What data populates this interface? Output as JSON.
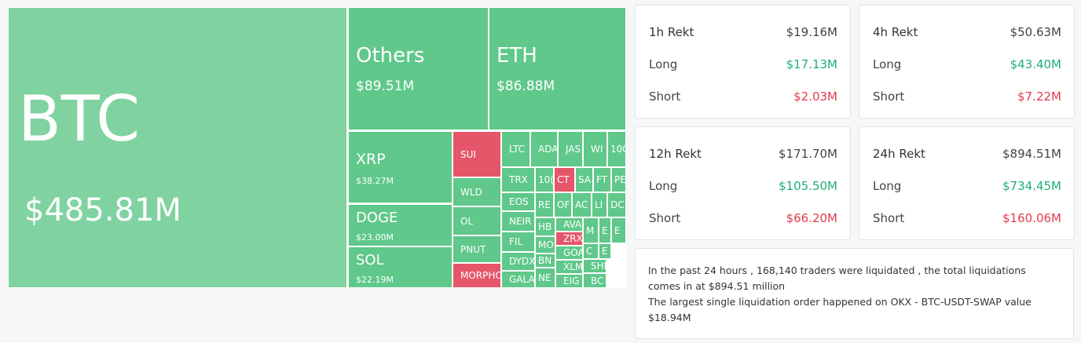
{
  "treemap": {
    "tiles": [
      {
        "label": "BTC",
        "value": "$485.81M"
      },
      {
        "label": "Others",
        "value": "$89.51M"
      },
      {
        "label": "ETH",
        "value": "$86.88M"
      },
      {
        "label": "XRP",
        "value": "$38.27M"
      },
      {
        "label": "DOGE",
        "value": "$23.00M"
      },
      {
        "label": "SOL",
        "value": "$22.19M"
      },
      {
        "label": "SUI"
      },
      {
        "label": "WLD"
      },
      {
        "label": "OL"
      },
      {
        "label": "PNUT"
      },
      {
        "label": "MORPHO"
      },
      {
        "label": "LTC"
      },
      {
        "label": "ADA"
      },
      {
        "label": "JAS"
      },
      {
        "label": "WI"
      },
      {
        "label": "100"
      },
      {
        "label": "TRX"
      },
      {
        "label": "10("
      },
      {
        "label": "CT"
      },
      {
        "label": "SA"
      },
      {
        "label": "FT"
      },
      {
        "label": "PE"
      },
      {
        "label": "EOS"
      },
      {
        "label": "RE"
      },
      {
        "label": "OF"
      },
      {
        "label": "AC"
      },
      {
        "label": "LI"
      },
      {
        "label": "DC"
      },
      {
        "label": "NEIR"
      },
      {
        "label": "HB"
      },
      {
        "label": "AVA"
      },
      {
        "label": "M"
      },
      {
        "label": "E"
      },
      {
        "label": "E"
      },
      {
        "label": "FIL"
      },
      {
        "label": "MO"
      },
      {
        "label": "ZRX"
      },
      {
        "label": "GOA"
      },
      {
        "label": "C"
      },
      {
        "label": "E"
      },
      {
        "label": "DYDX"
      },
      {
        "label": "BN"
      },
      {
        "label": "XLM"
      },
      {
        "label": "SHI"
      },
      {
        "label": "GALA"
      },
      {
        "label": "NE"
      },
      {
        "label": "EIG"
      },
      {
        "label": "BC"
      }
    ]
  },
  "cards": [
    {
      "title": "1h Rekt",
      "total": "$19.16M",
      "long_label": "Long",
      "long": "$17.13M",
      "short_label": "Short",
      "short": "$2.03M"
    },
    {
      "title": "4h Rekt",
      "total": "$50.63M",
      "long_label": "Long",
      "long": "$43.40M",
      "short_label": "Short",
      "short": "$7.22M"
    },
    {
      "title": "12h Rekt",
      "total": "$171.70M",
      "long_label": "Long",
      "long": "$105.50M",
      "short_label": "Short",
      "short": "$66.20M"
    },
    {
      "title": "24h Rekt",
      "total": "$894.51M",
      "long_label": "Long",
      "long": "$734.45M",
      "short_label": "Short",
      "short": "$160.06M"
    }
  ],
  "summary": {
    "line1": "In the past 24 hours , 168,140 traders were liquidated , the total liquidations comes in at $894.51 million",
    "line2": "The largest single liquidation order happened on OKX - BTC-USDT-SWAP value $18.94M"
  }
}
